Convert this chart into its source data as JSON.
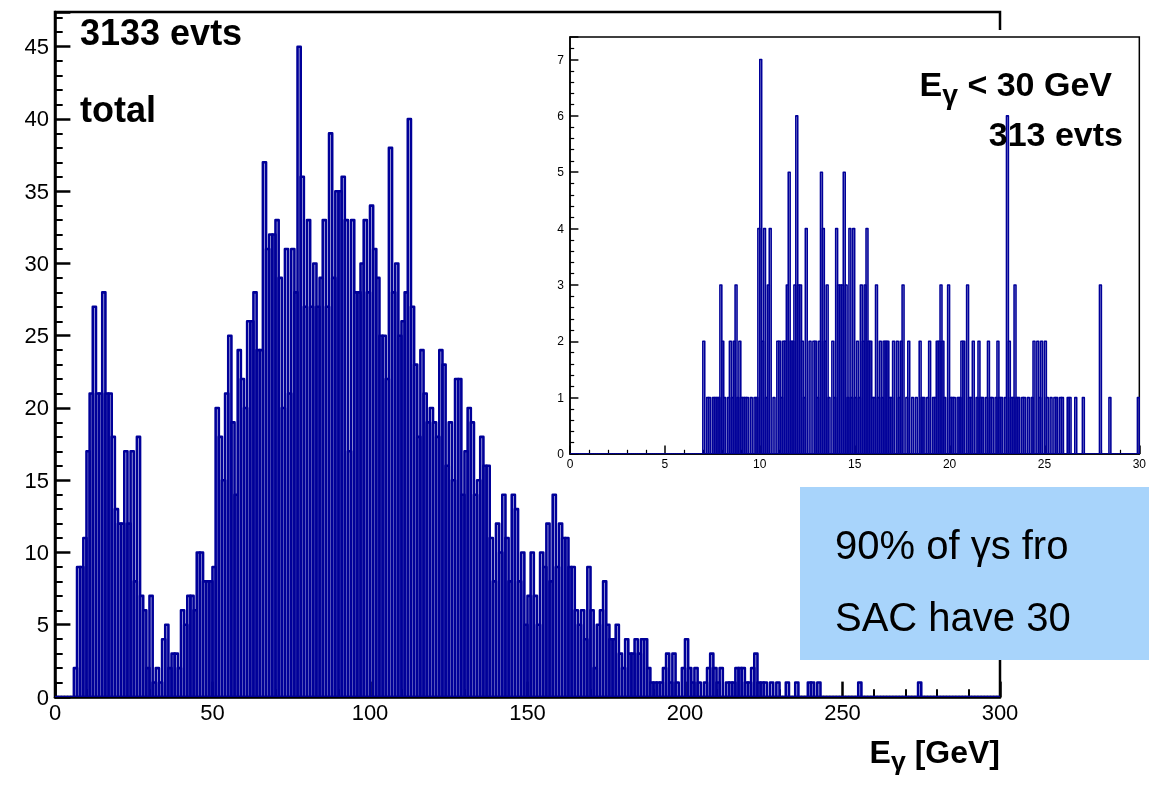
{
  "chart_data": [
    {
      "type": "histogram",
      "color": "#000099",
      "xlabel": "E$_{γ}$ [GeV]",
      "annotations": [
        "3133 evts",
        "total",
        "90% of γs fro",
        "SAC have 30"
      ],
      "xlim": [
        0,
        300
      ],
      "xticks": [
        0,
        50,
        100,
        150,
        200,
        250,
        300
      ],
      "ylim": [
        0,
        47.4
      ],
      "yticks": [
        0,
        5,
        10,
        15,
        20,
        25,
        30,
        35,
        40,
        45
      ],
      "bins": [
        0,
        1,
        2,
        3,
        4,
        5,
        6,
        7,
        8,
        9,
        10,
        11,
        12,
        13,
        14,
        15,
        16,
        17,
        18,
        19,
        20,
        21,
        22,
        23,
        24,
        25,
        26,
        27,
        28,
        29,
        30,
        31,
        32,
        33,
        34,
        35,
        36,
        37,
        38,
        39,
        40,
        41,
        42,
        43,
        44,
        45,
        46,
        47,
        48,
        49,
        50,
        51,
        52,
        53,
        54,
        55,
        56,
        57,
        58,
        59,
        60,
        61,
        62,
        63,
        64,
        65,
        66,
        67,
        68,
        69,
        70,
        71,
        72,
        73,
        74,
        75,
        76,
        77,
        78,
        79,
        80,
        81,
        82,
        83,
        84,
        85,
        86,
        87,
        88,
        89,
        90,
        91,
        92,
        93,
        94,
        95,
        96,
        97,
        98,
        99,
        100,
        101,
        102,
        103,
        104,
        105,
        106,
        107,
        108,
        109,
        110,
        111,
        112,
        113,
        114,
        115,
        116,
        117,
        118,
        119,
        120,
        121,
        122,
        123,
        124,
        125,
        126,
        127,
        128,
        129,
        130,
        131,
        132,
        133,
        134,
        135,
        136,
        137,
        138,
        139,
        140,
        141,
        142,
        143,
        144,
        145,
        146,
        147,
        148,
        149,
        150,
        151,
        152,
        153,
        154,
        155,
        156,
        157,
        158,
        159,
        160,
        161,
        162,
        163,
        164,
        165,
        166,
        167,
        168,
        169,
        170,
        171,
        172,
        173,
        174,
        175,
        176,
        177,
        178,
        179,
        180,
        181,
        182,
        183,
        184,
        185,
        186,
        187,
        188,
        189,
        190,
        191,
        192,
        193,
        194,
        195,
        196,
        197,
        198,
        199,
        200,
        201,
        202,
        203,
        204,
        205,
        206,
        207,
        208,
        209,
        210,
        211,
        212,
        213,
        214,
        215,
        216,
        217,
        218,
        219,
        220,
        221,
        222,
        223,
        224,
        225,
        226,
        227,
        228,
        229,
        230,
        231,
        232,
        233,
        234,
        235,
        236,
        237,
        238,
        239,
        240,
        241,
        242,
        243,
        244,
        245,
        246,
        247,
        248,
        249,
        250,
        251,
        252,
        253,
        254,
        255,
        256,
        257,
        258,
        259,
        260,
        261,
        262,
        263,
        264,
        265,
        266,
        267,
        268,
        269,
        270,
        271,
        272,
        273,
        274,
        275,
        276,
        277,
        278,
        279,
        280,
        281,
        282,
        283,
        284,
        285,
        286,
        287,
        288,
        289,
        290,
        291,
        292,
        293,
        294,
        295,
        296,
        297,
        298,
        299,
        300
      ],
      "values": [
        0,
        0,
        0,
        0,
        0,
        0,
        2,
        9,
        9,
        11,
        17,
        21,
        27,
        21,
        21,
        28,
        21,
        21,
        18,
        13,
        12,
        12,
        17,
        12,
        17,
        8,
        18,
        7,
        6,
        2,
        7,
        1,
        2,
        1,
        4,
        5,
        2,
        3,
        3,
        2,
        6,
        5,
        7,
        7,
        6,
        10,
        10,
        8,
        8,
        8,
        9,
        20,
        18,
        15,
        21,
        25,
        19,
        14,
        24,
        22,
        20,
        26,
        26,
        28,
        24,
        24,
        37,
        31,
        32,
        32,
        33,
        29,
        20,
        31,
        21,
        31,
        28,
        45,
        36,
        27,
        33,
        27,
        30,
        27,
        29,
        33,
        27,
        39,
        29,
        35,
        35,
        36,
        33,
        17,
        33,
        28,
        28,
        30,
        33,
        28,
        34,
        31,
        29,
        25,
        25,
        22,
        38,
        28,
        30,
        25,
        26,
        28,
        40,
        27,
        23,
        18,
        24,
        21,
        19,
        20,
        19,
        18,
        24,
        23,
        16,
        19,
        15,
        22,
        22,
        14,
        17,
        20,
        19,
        14,
        15,
        18,
        16,
        16,
        11,
        8,
        12,
        10,
        14,
        11,
        8,
        14,
        13,
        8,
        10,
        5,
        7,
        10,
        7,
        5,
        10,
        9,
        12,
        8,
        14,
        9,
        12,
        11,
        11,
        9,
        9,
        6,
        5,
        6,
        4,
        9,
        6,
        2,
        5,
        6,
        8,
        5,
        4,
        4,
        5,
        3,
        2,
        4,
        3,
        3,
        4,
        3,
        4,
        4,
        2,
        1,
        1,
        1,
        1,
        2,
        3,
        1,
        3,
        1,
        0,
        2,
        4,
        2,
        1,
        2,
        1,
        0,
        1,
        2,
        3,
        2,
        1,
        2,
        0,
        1,
        1,
        1,
        2,
        2,
        2,
        1,
        1,
        2,
        3,
        1,
        1,
        1,
        0,
        1,
        0,
        1,
        0,
        0,
        1,
        0,
        0,
        1,
        0,
        0,
        0,
        1,
        1,
        0,
        1,
        0,
        0,
        0,
        0,
        0,
        0,
        0,
        0,
        0,
        0,
        0,
        0,
        1,
        0,
        0,
        0,
        0,
        0,
        0,
        0,
        0,
        0,
        0,
        0,
        0,
        0,
        0,
        0,
        0,
        0,
        0,
        1,
        0,
        0,
        0,
        0,
        0,
        0,
        0,
        0,
        0,
        0,
        0,
        0,
        0,
        0,
        0,
        0,
        0,
        0,
        0,
        0,
        0,
        0,
        0,
        0,
        0
      ]
    },
    {
      "type": "histogram",
      "color": "#000099",
      "annotations": [
        "E$_{γ}$ < 30 GeV",
        "313 evts"
      ],
      "xlim": [
        0,
        30
      ],
      "xticks": [
        0,
        5,
        10,
        15,
        20,
        25,
        30
      ],
      "ylim": [
        0,
        7.4
      ],
      "yticks": [
        0,
        1,
        2,
        3,
        4,
        5,
        6,
        7
      ],
      "bins": [
        0,
        0.1,
        0.2,
        0.3,
        0.4,
        0.5,
        0.6,
        0.7,
        0.8,
        0.9,
        1,
        1.1,
        1.2,
        1.3,
        1.4,
        1.5,
        1.6,
        1.7,
        1.8,
        1.9,
        2,
        2.1,
        2.2,
        2.3,
        2.4,
        2.5,
        2.6,
        2.7,
        2.8,
        2.9,
        3,
        3.1,
        3.2,
        3.3,
        3.4,
        3.5,
        3.6,
        3.7,
        3.8,
        3.9,
        4,
        4.1,
        4.2,
        4.3,
        4.4,
        4.5,
        4.6,
        4.7,
        4.8,
        4.9,
        5,
        5.1,
        5.2,
        5.3,
        5.4,
        5.5,
        5.6,
        5.7,
        5.8,
        5.9,
        6,
        6.1,
        6.2,
        6.3,
        6.4,
        6.5,
        6.6,
        6.7,
        6.8,
        6.9,
        7,
        7.1,
        7.2,
        7.3,
        7.4,
        7.5,
        7.6,
        7.7,
        7.8,
        7.9,
        8,
        8.1,
        8.2,
        8.3,
        8.4,
        8.5,
        8.6,
        8.7,
        8.8,
        8.9,
        9,
        9.1,
        9.2,
        9.3,
        9.4,
        9.5,
        9.6,
        9.7,
        9.8,
        9.9,
        10,
        10.1,
        10.2,
        10.3,
        10.4,
        10.5,
        10.6,
        10.7,
        10.8,
        10.9,
        11,
        11.1,
        11.2,
        11.3,
        11.4,
        11.5,
        11.6,
        11.7,
        11.8,
        11.9,
        12,
        12.1,
        12.2,
        12.3,
        12.4,
        12.5,
        12.6,
        12.7,
        12.8,
        12.9,
        13,
        13.1,
        13.2,
        13.3,
        13.4,
        13.5,
        13.6,
        13.7,
        13.8,
        13.9,
        14,
        14.1,
        14.2,
        14.3,
        14.4,
        14.5,
        14.6,
        14.7,
        14.8,
        14.9,
        15,
        15.1,
        15.2,
        15.3,
        15.4,
        15.5,
        15.6,
        15.7,
        15.8,
        15.9,
        16,
        16.1,
        16.2,
        16.3,
        16.4,
        16.5,
        16.6,
        16.7,
        16.8,
        16.9,
        17,
        17.1,
        17.2,
        17.3,
        17.4,
        17.5,
        17.6,
        17.7,
        17.8,
        17.9,
        18,
        18.1,
        18.2,
        18.3,
        18.4,
        18.5,
        18.6,
        18.7,
        18.8,
        18.9,
        19,
        19.1,
        19.2,
        19.3,
        19.4,
        19.5,
        19.6,
        19.7,
        19.8,
        19.9,
        20,
        20.1,
        20.2,
        20.3,
        20.4,
        20.5,
        20.6,
        20.7,
        20.8,
        20.9,
        21,
        21.1,
        21.2,
        21.3,
        21.4,
        21.5,
        21.6,
        21.7,
        21.8,
        21.9,
        22,
        22.1,
        22.2,
        22.3,
        22.4,
        22.5,
        22.6,
        22.7,
        22.8,
        22.9,
        23,
        23.1,
        23.2,
        23.3,
        23.4,
        23.5,
        23.6,
        23.7,
        23.8,
        23.9,
        24,
        24.1,
        24.2,
        24.3,
        24.4,
        24.5,
        24.6,
        24.7,
        24.8,
        24.9,
        25,
        25.1,
        25.2,
        25.3,
        25.4,
        25.5,
        25.6,
        25.7,
        25.8,
        25.9,
        26,
        26.1,
        26.2,
        26.3,
        26.4,
        26.5,
        26.6,
        26.7,
        26.8,
        26.9,
        27,
        27.1,
        27.2,
        27.3,
        27.4,
        27.5,
        27.6,
        27.7,
        27.8,
        27.9,
        28,
        28.1,
        28.2,
        28.3,
        28.4,
        28.5,
        28.6,
        28.7,
        28.8,
        28.9,
        29,
        29.1,
        29.2,
        29.3,
        29.4,
        29.5,
        29.6,
        29.7,
        29.8,
        29.9,
        30
      ],
      "values": [
        0,
        0,
        0,
        0,
        0,
        0,
        0,
        0,
        0,
        0,
        0,
        0,
        0,
        0,
        0,
        0,
        0,
        0,
        0,
        0,
        0,
        0,
        0,
        0,
        0,
        0,
        0,
        0,
        0,
        0,
        0,
        0,
        0,
        0,
        0,
        0,
        0,
        0,
        0,
        0,
        0,
        0,
        0,
        0,
        0,
        0,
        0,
        0,
        0,
        0,
        0,
        0,
        0,
        0,
        0,
        0,
        0,
        0,
        0,
        0,
        0,
        0,
        0,
        0,
        0,
        0,
        0,
        0,
        0,
        0,
        2,
        0,
        1,
        1,
        0,
        1,
        1,
        1,
        1,
        3,
        2,
        1,
        0,
        1,
        2,
        1,
        2,
        3,
        1,
        2,
        1,
        1,
        1,
        1,
        0,
        1,
        0,
        1,
        1,
        4,
        7,
        2,
        4,
        1,
        3,
        4,
        0,
        1,
        0,
        2,
        2,
        1,
        2,
        2,
        3,
        5,
        2,
        2,
        3,
        6,
        3,
        3,
        2,
        1,
        4,
        0,
        2,
        0,
        2,
        2,
        1,
        2,
        5,
        4,
        2,
        3,
        1,
        0,
        2,
        1,
        4,
        3,
        3,
        3,
        5,
        3,
        1,
        4,
        1,
        4,
        1,
        2,
        1,
        3,
        2,
        3,
        4,
        2,
        2,
        1,
        1,
        3,
        1,
        2,
        1,
        2,
        2,
        2,
        1,
        1,
        2,
        0,
        2,
        1,
        2,
        3,
        0,
        1,
        2,
        0,
        1,
        0,
        1,
        0,
        2,
        1,
        1,
        0,
        1,
        2,
        0,
        1,
        1,
        2,
        2,
        3,
        2,
        1,
        0,
        3,
        1,
        1,
        1,
        0,
        1,
        1,
        2,
        2,
        0,
        3,
        1,
        1,
        2,
        0,
        1,
        2,
        1,
        1,
        0,
        1,
        2,
        1,
        1,
        0,
        1,
        2,
        1,
        1,
        0,
        1,
        6,
        2,
        1,
        1,
        3,
        1,
        1,
        0,
        1,
        1,
        0,
        1,
        0,
        1,
        2,
        0,
        2,
        1,
        2,
        0,
        2,
        1,
        0,
        1,
        0,
        1,
        1,
        0,
        1,
        1,
        0,
        0,
        1,
        1,
        0,
        0,
        1,
        0,
        0,
        0,
        1,
        0,
        0,
        0,
        0,
        0,
        0,
        0,
        0,
        3,
        0,
        0,
        0,
        0,
        1,
        0,
        0,
        0,
        0,
        0,
        0,
        0,
        0,
        0,
        0,
        0,
        0,
        0,
        0,
        1
      ]
    }
  ]
}
